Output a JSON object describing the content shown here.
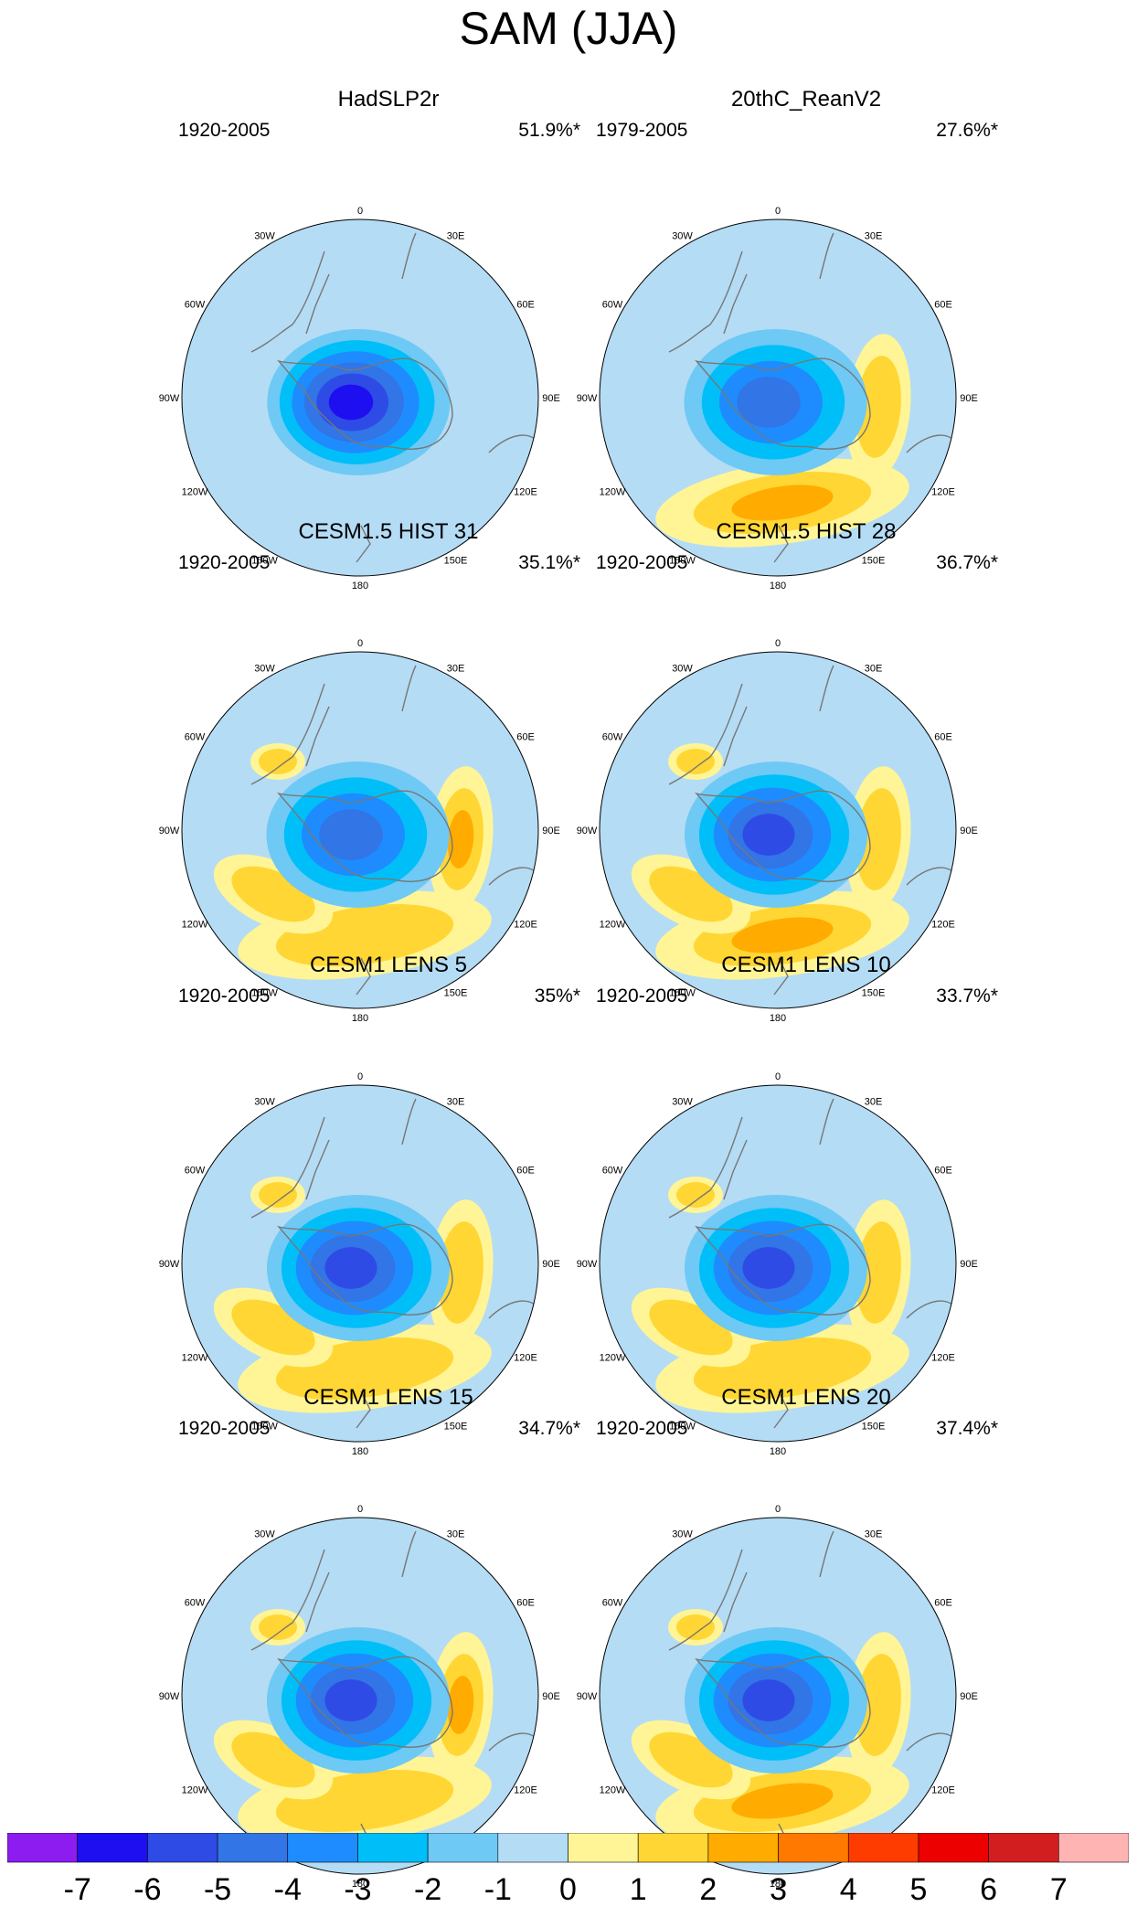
{
  "chart_data": {
    "type": "heatmap",
    "title": "SAM (JJA)",
    "projection": "south polar stereographic",
    "longitude_labels": [
      "0",
      "30E",
      "60E",
      "90E",
      "120E",
      "150E",
      "180",
      "150W",
      "120W",
      "90W",
      "60W",
      "30W"
    ],
    "panels": [
      {
        "name": "HadSLP2r",
        "period": "1920-2005",
        "variance": "51.9%*",
        "center_min": -6,
        "lobe_180": 0,
        "lobe_90E": 0,
        "lobe_120W": 0,
        "lobe_60W": 0
      },
      {
        "name": "20thC_ReanV2",
        "period": "1979-2005",
        "variance": "27.6%*",
        "center_min": -4,
        "lobe_180": 3,
        "lobe_90E": 2,
        "lobe_120W": 0,
        "lobe_60W": 0
      },
      {
        "name": "CESM1.5 HIST 31",
        "period": "1920-2005",
        "variance": "35.1%*",
        "center_min": -4,
        "lobe_180": 2,
        "lobe_90E": 3,
        "lobe_120W": 2,
        "lobe_60W": 2
      },
      {
        "name": "CESM1.5 HIST 28",
        "period": "1920-2005",
        "variance": "36.7%*",
        "center_min": -5,
        "lobe_180": 3,
        "lobe_90E": 2,
        "lobe_120W": 2,
        "lobe_60W": 2
      },
      {
        "name": "CESM1 LENS 5",
        "period": "1920-2005",
        "variance": "35%*",
        "center_min": -5,
        "lobe_180": 2,
        "lobe_90E": 2,
        "lobe_120W": 2,
        "lobe_60W": 2
      },
      {
        "name": "CESM1 LENS 10",
        "period": "1920-2005",
        "variance": "33.7%*",
        "center_min": -5,
        "lobe_180": 2,
        "lobe_90E": 2,
        "lobe_120W": 2,
        "lobe_60W": 2
      },
      {
        "name": "CESM1 LENS 15",
        "period": "1920-2005",
        "variance": "34.7%*",
        "center_min": -5,
        "lobe_180": 2,
        "lobe_90E": 3,
        "lobe_120W": 2,
        "lobe_60W": 2
      },
      {
        "name": "CESM1 LENS 20",
        "period": "1920-2005",
        "variance": "37.4%*",
        "center_min": -5,
        "lobe_180": 3,
        "lobe_90E": 2,
        "lobe_120W": 2,
        "lobe_60W": 2
      }
    ],
    "colorbar": {
      "labels": [
        "-7",
        "-6",
        "-5",
        "-4",
        "-3",
        "-2",
        "-1",
        "0",
        "1",
        "2",
        "3",
        "4",
        "5",
        "6",
        "7"
      ],
      "colors": [
        "#8c1cf0",
        "#1e0ff0",
        "#2f4be6",
        "#3275e6",
        "#1e8cff",
        "#00bff8",
        "#6ec9f5",
        "#b4dcf5",
        "#fff596",
        "#ffd633",
        "#ffab00",
        "#ff7800",
        "#ff3c00",
        "#ec0000",
        "#d21e1e",
        "#ffb4b4"
      ]
    }
  }
}
